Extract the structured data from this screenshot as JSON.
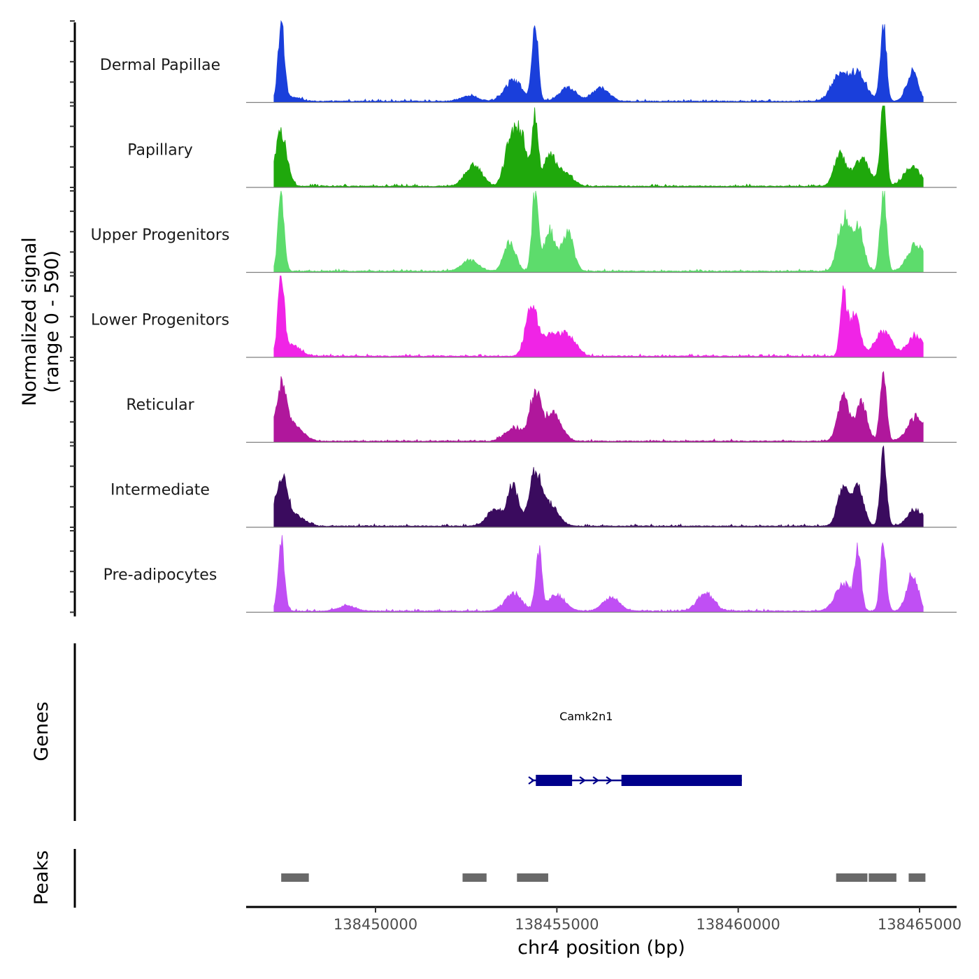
{
  "chart_data": {
    "type": "area",
    "chromosome": "chr4",
    "region": [
      138441500,
      138466000
    ],
    "xlabel": "chr4 position (bp)",
    "ylabel_line1": "Normalized signal",
    "ylabel_line2": "(range 0 - 590)",
    "ylim": [
      0,
      590
    ],
    "x_ticks": [
      {
        "value": 138450000,
        "label": "138450000"
      },
      {
        "value": 138455000,
        "label": "138455000"
      },
      {
        "value": 138460000,
        "label": "138460000"
      },
      {
        "value": 138465000,
        "label": "138465000"
      }
    ],
    "tracks": [
      {
        "name": "Dermal Papillae",
        "color": "#1a3fdb",
        "values": [
          {
            "pos": 138447400,
            "y": 580
          },
          {
            "pos": 138447700,
            "y": 30
          },
          {
            "pos": 138452600,
            "y": 40
          },
          {
            "pos": 138453800,
            "y": 160
          },
          {
            "pos": 138454400,
            "y": 580
          },
          {
            "pos": 138455300,
            "y": 100
          },
          {
            "pos": 138456200,
            "y": 100
          },
          {
            "pos": 138462800,
            "y": 200
          },
          {
            "pos": 138463300,
            "y": 200
          },
          {
            "pos": 138464000,
            "y": 580
          },
          {
            "pos": 138464800,
            "y": 220
          }
        ]
      },
      {
        "name": "Papillary",
        "color": "#1fa80c",
        "values": [
          {
            "pos": 138447400,
            "y": 400
          },
          {
            "pos": 138452700,
            "y": 160
          },
          {
            "pos": 138453700,
            "y": 300
          },
          {
            "pos": 138454000,
            "y": 380
          },
          {
            "pos": 138454400,
            "y": 530
          },
          {
            "pos": 138454800,
            "y": 220
          },
          {
            "pos": 138455200,
            "y": 100
          },
          {
            "pos": 138462800,
            "y": 240
          },
          {
            "pos": 138463400,
            "y": 200
          },
          {
            "pos": 138464000,
            "y": 590
          },
          {
            "pos": 138464800,
            "y": 150
          }
        ]
      },
      {
        "name": "Upper Progenitors",
        "color": "#5ddc6c",
        "values": [
          {
            "pos": 138447400,
            "y": 560
          },
          {
            "pos": 138452600,
            "y": 80
          },
          {
            "pos": 138453700,
            "y": 230
          },
          {
            "pos": 138454400,
            "y": 580
          },
          {
            "pos": 138454800,
            "y": 300
          },
          {
            "pos": 138455300,
            "y": 290
          },
          {
            "pos": 138462900,
            "y": 390
          },
          {
            "pos": 138463300,
            "y": 320
          },
          {
            "pos": 138464000,
            "y": 580
          },
          {
            "pos": 138464900,
            "y": 200
          }
        ]
      },
      {
        "name": "Lower Progenitors",
        "color": "#f024e6",
        "values": [
          {
            "pos": 138447400,
            "y": 580
          },
          {
            "pos": 138447700,
            "y": 80
          },
          {
            "pos": 138454300,
            "y": 380
          },
          {
            "pos": 138454800,
            "y": 150
          },
          {
            "pos": 138455300,
            "y": 150
          },
          {
            "pos": 138462900,
            "y": 440
          },
          {
            "pos": 138463200,
            "y": 300
          },
          {
            "pos": 138464000,
            "y": 180
          },
          {
            "pos": 138464900,
            "y": 150
          }
        ]
      },
      {
        "name": "Reticular",
        "color": "#b0179c",
        "values": [
          {
            "pos": 138447400,
            "y": 400
          },
          {
            "pos": 138447800,
            "y": 100
          },
          {
            "pos": 138453800,
            "y": 100
          },
          {
            "pos": 138454400,
            "y": 350
          },
          {
            "pos": 138454900,
            "y": 200
          },
          {
            "pos": 138462900,
            "y": 330
          },
          {
            "pos": 138463400,
            "y": 280
          },
          {
            "pos": 138464000,
            "y": 540
          },
          {
            "pos": 138464900,
            "y": 180
          }
        ]
      },
      {
        "name": "Intermediate",
        "color": "#3a0b5e",
        "values": [
          {
            "pos": 138447400,
            "y": 360
          },
          {
            "pos": 138447800,
            "y": 80
          },
          {
            "pos": 138453300,
            "y": 120
          },
          {
            "pos": 138453800,
            "y": 280
          },
          {
            "pos": 138454400,
            "y": 380
          },
          {
            "pos": 138454800,
            "y": 160
          },
          {
            "pos": 138462900,
            "y": 300
          },
          {
            "pos": 138463300,
            "y": 280
          },
          {
            "pos": 138464000,
            "y": 580
          },
          {
            "pos": 138464900,
            "y": 120
          }
        ]
      },
      {
        "name": "Pre-adipocytes",
        "color": "#c04ff4",
        "values": [
          {
            "pos": 138447400,
            "y": 540
          },
          {
            "pos": 138449200,
            "y": 40
          },
          {
            "pos": 138453800,
            "y": 130
          },
          {
            "pos": 138454500,
            "y": 440
          },
          {
            "pos": 138455000,
            "y": 120
          },
          {
            "pos": 138456500,
            "y": 100
          },
          {
            "pos": 138459100,
            "y": 130
          },
          {
            "pos": 138462900,
            "y": 200
          },
          {
            "pos": 138463300,
            "y": 430
          },
          {
            "pos": 138464000,
            "y": 480
          },
          {
            "pos": 138464800,
            "y": 270
          }
        ]
      }
    ],
    "genes": {
      "title": "Genes",
      "items": [
        {
          "name": "Camk2n1",
          "start": 138454300,
          "end": 138460100,
          "strand": "+",
          "exons": [
            [
              138454420,
              138455420
            ],
            [
              138456780,
              138460100
            ]
          ],
          "color": "#00008b"
        }
      ]
    },
    "peaks": {
      "title": "Peaks",
      "color": "#696969",
      "regions": [
        [
          138447400,
          138448200
        ],
        [
          138452400,
          138453100
        ],
        [
          138453900,
          138454800
        ],
        [
          138462700,
          138463600
        ],
        [
          138463600,
          138464400
        ],
        [
          138464700,
          138465200
        ]
      ]
    }
  }
}
